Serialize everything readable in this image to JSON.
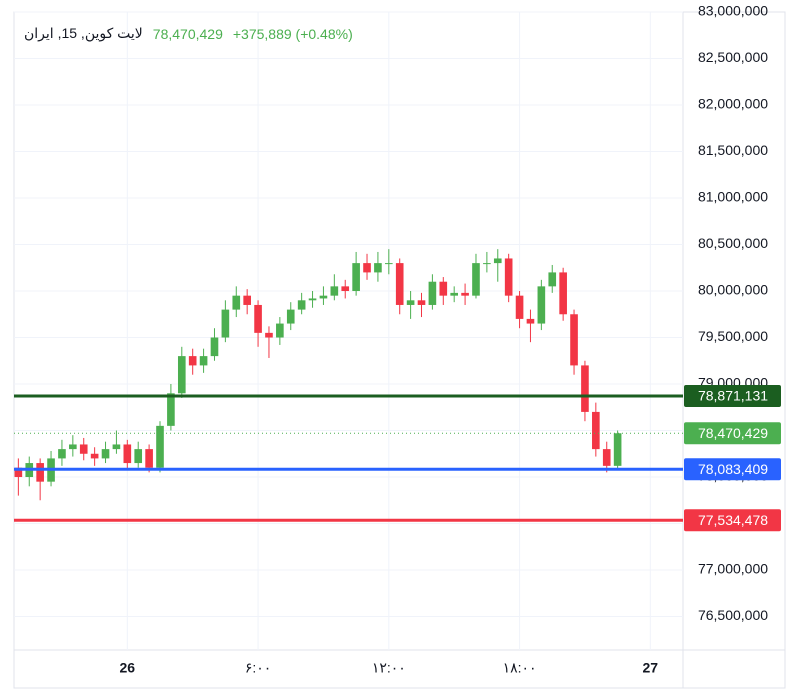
{
  "chart_data": {
    "type": "candlestick",
    "title": "لایت کوین, 15, ایران",
    "header_price": "78,470,429",
    "header_change": "+375,889 (+0.48%)",
    "up_color": "#4caf50",
    "down_color": "#f23645",
    "grid": true,
    "x": [
      -5,
      -4.5,
      -4,
      -3.5,
      -3,
      -2.5,
      -2,
      -1.5,
      -1,
      -0.5,
      0,
      0.5,
      1,
      1.5,
      2,
      2.5,
      3,
      3.5,
      4,
      4.5,
      5,
      5.5,
      6,
      6.5,
      7,
      7.5,
      8,
      8.5,
      9,
      9.5,
      10,
      10.5,
      11,
      11.5,
      12,
      12.5,
      13,
      13.5,
      14,
      14.5,
      15,
      15.5,
      16,
      16.5,
      17,
      17.5,
      18,
      18.5,
      19,
      19.5,
      20,
      20.5,
      21,
      21.5,
      22,
      22.5
    ],
    "open": [
      78100000,
      78000000,
      78150000,
      77950000,
      78200000,
      78300000,
      78350000,
      78250000,
      78200000,
      78300000,
      78350000,
      78150000,
      78300000,
      78100000,
      78550000,
      78900000,
      79300000,
      79200000,
      79300000,
      79500000,
      79800000,
      79950000,
      79850000,
      79550000,
      79500000,
      79650000,
      79800000,
      79900000,
      79920000,
      79950000,
      80050000,
      80000000,
      80300000,
      80200000,
      80300000,
      80300000,
      79850000,
      79900000,
      79850000,
      80100000,
      79950000,
      79980000,
      79950000,
      80300000,
      80300000,
      80350000,
      79950000,
      79700000,
      79650000,
      80050000,
      80200000,
      79750000,
      79200000,
      78700000,
      78300000,
      78120000
    ],
    "high": [
      78200000,
      78220000,
      78200000,
      78280000,
      78400000,
      78450000,
      78420000,
      78320000,
      78380000,
      78500000,
      78400000,
      78380000,
      78350000,
      78600000,
      79000000,
      79400000,
      79380000,
      79380000,
      79600000,
      79900000,
      80050000,
      80020000,
      79900000,
      79620000,
      79720000,
      79880000,
      79980000,
      80000000,
      80050000,
      80180000,
      80120000,
      80420000,
      80400000,
      80420000,
      80450000,
      80350000,
      80000000,
      79980000,
      80180000,
      80150000,
      80050000,
      80080000,
      80400000,
      80420000,
      80450000,
      80400000,
      80000000,
      79800000,
      80120000,
      80280000,
      80250000,
      79800000,
      79250000,
      78800000,
      78380000,
      78500000
    ],
    "low": [
      77800000,
      77900000,
      77750000,
      77900000,
      78120000,
      78220000,
      78180000,
      78120000,
      78150000,
      78250000,
      78080000,
      78100000,
      78050000,
      78050000,
      78500000,
      78850000,
      79100000,
      79120000,
      79250000,
      79450000,
      79720000,
      79750000,
      79400000,
      79280000,
      79420000,
      79580000,
      79750000,
      79820000,
      79850000,
      79900000,
      79920000,
      79950000,
      80120000,
      80100000,
      80180000,
      79750000,
      79700000,
      79720000,
      79800000,
      79850000,
      79880000,
      79850000,
      79920000,
      80200000,
      80100000,
      79880000,
      79600000,
      79450000,
      79580000,
      79980000,
      79680000,
      79100000,
      78600000,
      78220000,
      78050000,
      78080000
    ],
    "close": [
      78000000,
      78150000,
      77950000,
      78200000,
      78300000,
      78350000,
      78250000,
      78200000,
      78300000,
      78350000,
      78150000,
      78300000,
      78100000,
      78550000,
      78900000,
      79300000,
      79200000,
      79300000,
      79500000,
      79800000,
      79950000,
      79850000,
      79550000,
      79500000,
      79650000,
      79800000,
      79900000,
      79920000,
      79950000,
      80050000,
      80000000,
      80300000,
      80200000,
      80300000,
      80300000,
      79850000,
      79900000,
      79850000,
      80100000,
      79950000,
      79980000,
      79950000,
      80300000,
      80300000,
      80350000,
      79950000,
      79700000,
      79650000,
      80050000,
      80200000,
      79750000,
      79200000,
      78700000,
      78300000,
      78120000,
      78470429
    ],
    "xlim": [
      -5.2,
      25.5
    ],
    "xticks": [
      {
        "value": 0,
        "label": "26"
      },
      {
        "value": 6,
        "label": "۶:۰۰"
      },
      {
        "value": 12,
        "label": "۱۲:۰۰"
      },
      {
        "value": 18,
        "label": "۱۸:۰۰"
      },
      {
        "value": 24,
        "label": "27"
      }
    ],
    "ylim": [
      76140000,
      83000000
    ],
    "yticks": [
      {
        "value": 76500000,
        "label": "76,500,000"
      },
      {
        "value": 77000000,
        "label": "77,000,000"
      },
      {
        "value": 77500000,
        "label": "77,500,000"
      },
      {
        "value": 78000000,
        "label": "78,000,000"
      },
      {
        "value": 78500000,
        "label": "78,500,000"
      },
      {
        "value": 79000000,
        "label": "79,000,000"
      },
      {
        "value": 79500000,
        "label": "79,500,000"
      },
      {
        "value": 80000000,
        "label": "80,000,000"
      },
      {
        "value": 80500000,
        "label": "80,500,000"
      },
      {
        "value": 81000000,
        "label": "81,000,000"
      },
      {
        "value": 81500000,
        "label": "81,500,000"
      },
      {
        "value": 82000000,
        "label": "82,000,000"
      },
      {
        "value": 82500000,
        "label": "82,500,000"
      },
      {
        "value": 83000000,
        "label": "83,000,000"
      }
    ],
    "price_lines": [
      {
        "value": 78871131,
        "label": "78,871,131",
        "color": "#1b5e20",
        "style": "solid"
      },
      {
        "value": 78470429,
        "label": "78,470,429",
        "color": "#4caf50",
        "style": "dotted"
      },
      {
        "value": 78083409,
        "label": "78,083,409",
        "color": "#2962ff",
        "style": "solid"
      },
      {
        "value": 77534478,
        "label": "77,534,478",
        "color": "#f23645",
        "style": "solid"
      }
    ]
  }
}
